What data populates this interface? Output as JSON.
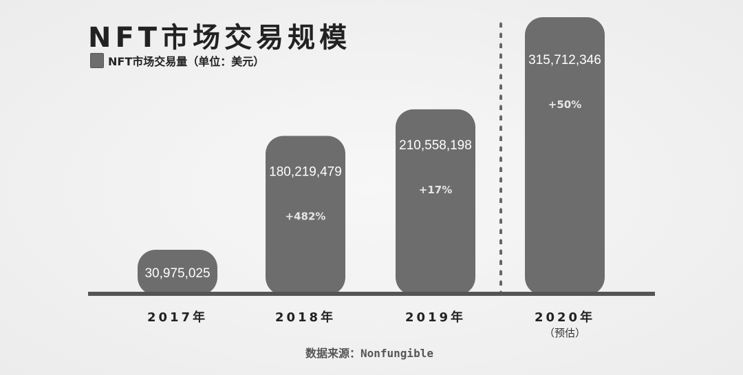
{
  "chart_data": {
    "type": "bar",
    "title": "NFT市场交易规模",
    "legend": [
      {
        "label": "NFT市场交易量（单位：美元）",
        "color": "#6d6d6d"
      }
    ],
    "categories": [
      "2017年",
      "2018年",
      "2019年",
      "2020年"
    ],
    "category_notes": [
      "",
      "",
      "",
      "（预估）"
    ],
    "values": [
      30975025,
      180219479,
      210558198,
      315712346
    ],
    "value_labels": [
      "30,975,025",
      "180,219,479",
      "210,558,198",
      "315,712,346"
    ],
    "growth_labels": [
      "",
      "+482%",
      "+17%",
      "+50%"
    ],
    "xlabel": "",
    "ylabel": "",
    "bar_color": "#6d6d6d",
    "axis_color": "#555555",
    "source": "数据来源：Nonfungible"
  }
}
